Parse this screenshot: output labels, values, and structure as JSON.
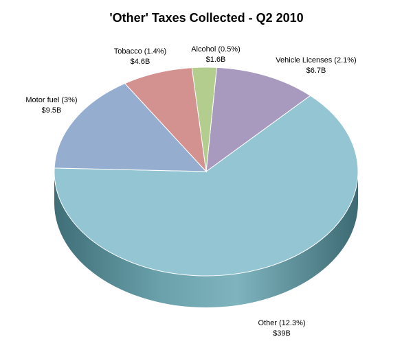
{
  "chart_data": {
    "type": "pie",
    "title": "'Other' Taxes Collected - Q2 2010",
    "slices": [
      {
        "name": "Vehicle Licenses (2.1%)",
        "value_label": "$6.7B",
        "value": 6.7,
        "color": "#A899BF"
      },
      {
        "name": "Other (12.3%)",
        "value_label": "$39B",
        "value": 39,
        "color": "#93C5D3"
      },
      {
        "name": "Motor fuel (3%)",
        "value_label": "$9.5B",
        "value": 9.5,
        "color": "#95AECF"
      },
      {
        "name": "Tobacco (1.4%)",
        "value_label": "$4.6B",
        "value": 4.6,
        "color": "#D39190"
      },
      {
        "name": "Alcohol (0.5%)",
        "value_label": "$1.6B",
        "value": 1.6,
        "color": "#B3CD8E"
      }
    ],
    "side_color": "#5E949E"
  }
}
